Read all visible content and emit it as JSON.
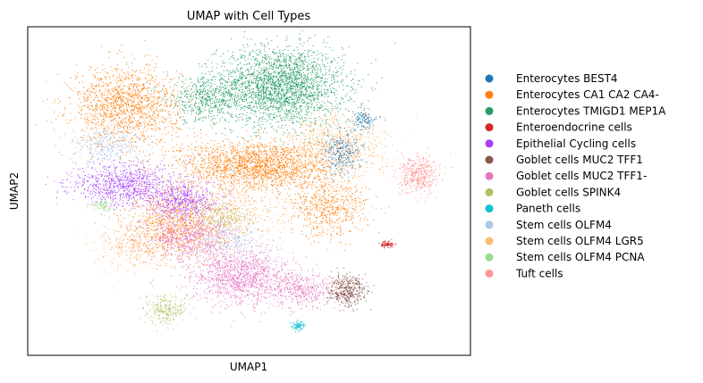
{
  "chart_data": {
    "type": "scatter",
    "title": "UMAP with Cell Types",
    "xlabel": "UMAP1",
    "ylabel": "UMAP2",
    "xlim": [
      0,
      100
    ],
    "ylim": [
      0,
      100
    ],
    "grid": false,
    "ticks": false,
    "legend_position": "right",
    "legend": [
      {
        "label": "Enterocytes BEST4",
        "color": "#1f77b4"
      },
      {
        "label": "Enterocytes CA1 CA2 CA4-",
        "color": "#ff7f0e"
      },
      {
        "label": "Enterocytes TMIGD1 MEP1A",
        "color": "#279e68"
      },
      {
        "label": "Enteroendocrine cells",
        "color": "#d62728"
      },
      {
        "label": "Epithelial Cycling cells",
        "color": "#aa40fc"
      },
      {
        "label": "Goblet cells MUC2 TFF1",
        "color": "#8c564b"
      },
      {
        "label": "Goblet cells MUC2 TFF1-",
        "color": "#e377c2"
      },
      {
        "label": "Goblet cells SPINK4",
        "color": "#b5bd61"
      },
      {
        "label": "Paneth cells",
        "color": "#17becf"
      },
      {
        "label": "Stem cells OLFM4",
        "color": "#aec7e8"
      },
      {
        "label": "Stem cells OLFM4 LGR5",
        "color": "#ffbb78"
      },
      {
        "label": "Stem cells OLFM4 PCNA",
        "color": "#98df8a"
      },
      {
        "label": "Tuft cells",
        "color": "#ff9896"
      }
    ],
    "clusters": [
      {
        "cell_type": "Enterocytes TMIGD1 MEP1A",
        "center": [
          57,
          82
        ],
        "spread": [
          13,
          11
        ],
        "n": 2600
      },
      {
        "cell_type": "Enterocytes TMIGD1 MEP1A",
        "center": [
          40,
          78
        ],
        "spread": [
          8,
          6
        ],
        "n": 500
      },
      {
        "cell_type": "Enterocytes CA1 CA2 CA4-",
        "center": [
          22,
          76
        ],
        "spread": [
          11,
          11
        ],
        "n": 1500
      },
      {
        "cell_type": "Enterocytes CA1 CA2 CA4-",
        "center": [
          52,
          58
        ],
        "spread": [
          16,
          7
        ],
        "n": 2000
      },
      {
        "cell_type": "Enterocytes CA1 CA2 CA4-",
        "center": [
          33,
          40
        ],
        "spread": [
          10,
          10
        ],
        "n": 900
      },
      {
        "cell_type": "Enterocytes CA1 CA2 CA4-",
        "center": [
          68,
          45
        ],
        "spread": [
          8,
          8
        ],
        "n": 600
      },
      {
        "cell_type": "Stem cells OLFM4 LGR5",
        "center": [
          70,
          64
        ],
        "spread": [
          10,
          9
        ],
        "n": 800
      },
      {
        "cell_type": "Stem cells OLFM4 LGR5",
        "center": [
          45,
          44
        ],
        "spread": [
          14,
          9
        ],
        "n": 700
      },
      {
        "cell_type": "Stem cells OLFM4 LGR5",
        "center": [
          24,
          33
        ],
        "spread": [
          8,
          6
        ],
        "n": 300
      },
      {
        "cell_type": "Epithelial Cycling cells",
        "center": [
          22,
          52
        ],
        "spread": [
          11,
          6
        ],
        "n": 900
      },
      {
        "cell_type": "Epithelial Cycling cells",
        "center": [
          35,
          47
        ],
        "spread": [
          7,
          5
        ],
        "n": 500
      },
      {
        "cell_type": "Goblet cells MUC2 TFF1-",
        "center": [
          48,
          24
        ],
        "spread": [
          10,
          8
        ],
        "n": 1300
      },
      {
        "cell_type": "Goblet cells MUC2 TFF1-",
        "center": [
          37,
          36
        ],
        "spread": [
          10,
          6
        ],
        "n": 700
      },
      {
        "cell_type": "Goblet cells MUC2 TFF1-",
        "center": [
          62,
          20
        ],
        "spread": [
          6,
          5
        ],
        "n": 400
      },
      {
        "cell_type": "Goblet cells MUC2 TFF1",
        "center": [
          72,
          20
        ],
        "spread": [
          4,
          4
        ],
        "n": 420
      },
      {
        "cell_type": "Goblet cells SPINK4",
        "center": [
          31,
          14
        ],
        "spread": [
          4,
          4
        ],
        "n": 250
      },
      {
        "cell_type": "Goblet cells SPINK4",
        "center": [
          44,
          42
        ],
        "spread": [
          6,
          4
        ],
        "n": 200
      },
      {
        "cell_type": "Stem cells OLFM4",
        "center": [
          18,
          64
        ],
        "spread": [
          7,
          5
        ],
        "n": 350
      },
      {
        "cell_type": "Stem cells OLFM4",
        "center": [
          46,
          35
        ],
        "spread": [
          8,
          5
        ],
        "n": 200
      },
      {
        "cell_type": "Enterocytes BEST4",
        "center": [
          71,
          62
        ],
        "spread": [
          4,
          6
        ],
        "n": 260
      },
      {
        "cell_type": "Enterocytes BEST4",
        "center": [
          76,
          72
        ],
        "spread": [
          3,
          3
        ],
        "n": 120
      },
      {
        "cell_type": "Tuft cells",
        "center": [
          88,
          55
        ],
        "spread": [
          4,
          5
        ],
        "n": 450
      },
      {
        "cell_type": "Enteroendocrine cells",
        "center": [
          81,
          34
        ],
        "spread": [
          1.5,
          1
        ],
        "n": 80
      },
      {
        "cell_type": "Paneth cells",
        "center": [
          61,
          9
        ],
        "spread": [
          1.5,
          1.3
        ],
        "n": 90
      },
      {
        "cell_type": "Stem cells OLFM4 PCNA",
        "center": [
          17,
          46
        ],
        "spread": [
          2.5,
          1.5
        ],
        "n": 80
      }
    ]
  }
}
